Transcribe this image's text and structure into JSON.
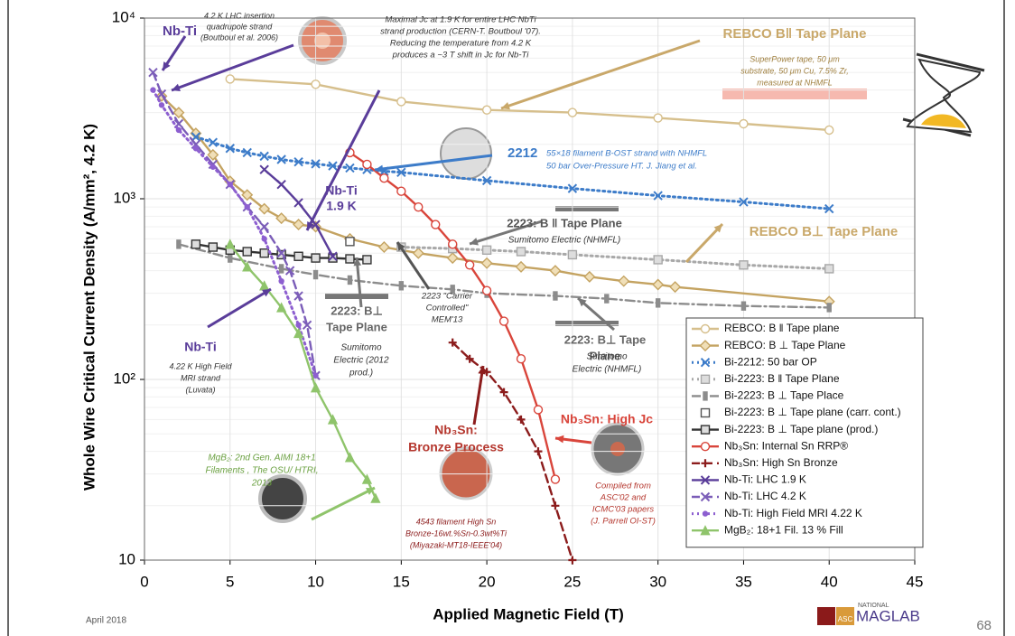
{
  "chart_data": {
    "type": "line",
    "log_y": true,
    "grid": true,
    "legend": "lower right",
    "xlabel": "Applied Magnetic Field (T)",
    "ylabel": "Whole Wire Critical Current Density (A/mm², 4.2 K)",
    "xlim": [
      0,
      45
    ],
    "xticks": [
      0,
      5,
      10,
      15,
      20,
      25,
      30,
      35,
      40,
      45
    ],
    "ylim": [
      10,
      10000
    ],
    "yticks": [
      {
        "value": 10000,
        "label": "10⁴"
      },
      {
        "value": 1000,
        "label": "10³"
      },
      {
        "value": 100,
        "label": "10²"
      },
      10
    ],
    "series": [
      {
        "name": "REBCO: B ‖ Tape plane",
        "color": "#d6bf8c",
        "marker": "circle",
        "line": "solid",
        "x": [
          5,
          10,
          15,
          20,
          25,
          30,
          35,
          40
        ],
        "values": [
          4600,
          4300,
          3450,
          3100,
          3000,
          2800,
          2600,
          2400
        ]
      },
      {
        "name": "REBCO: B ⊥ Tape Plane",
        "color": "#c4a361",
        "marker": "diamond",
        "line": "solid",
        "x": [
          1,
          2,
          3,
          4,
          5,
          6,
          7,
          8,
          9,
          10,
          12,
          14,
          16,
          18,
          20,
          22,
          24,
          26,
          28,
          30,
          31,
          40
        ],
        "values": [
          3700,
          3000,
          2300,
          1750,
          1250,
          1050,
          880,
          780,
          720,
          700,
          600,
          540,
          500,
          470,
          440,
          420,
          400,
          370,
          350,
          335,
          325,
          270
        ]
      },
      {
        "name": "Bi-2212: 50 bar OP",
        "color": "#3d7cc9",
        "marker": "x",
        "line": "dotted",
        "x": [
          3,
          4,
          5,
          6,
          7,
          8,
          9,
          10,
          11,
          12,
          13,
          14,
          15,
          20,
          25,
          30,
          35,
          40
        ],
        "values": [
          2200,
          2050,
          1900,
          1800,
          1720,
          1650,
          1600,
          1560,
          1520,
          1480,
          1450,
          1420,
          1400,
          1260,
          1140,
          1040,
          960,
          880
        ]
      },
      {
        "name": "Bi-2223: B ‖ Tape Plane",
        "color": "#a8a8a8",
        "marker": "square",
        "line": "dotted",
        "x": [
          15,
          18,
          20,
          22,
          25,
          30,
          35,
          40
        ],
        "values": [
          540,
          530,
          520,
          510,
          490,
          460,
          430,
          410
        ]
      },
      {
        "name": "Bi-2223: B ⊥ Tape Place",
        "color": "#8c8c8c",
        "marker": "tick",
        "line": "dashdot",
        "x": [
          2,
          5,
          8,
          10,
          12,
          15,
          18,
          20,
          24,
          27,
          30,
          35,
          40
        ],
        "values": [
          560,
          470,
          410,
          380,
          355,
          330,
          315,
          300,
          290,
          280,
          265,
          255,
          250
        ]
      },
      {
        "name": "Bi-2223: B ⊥ Tape plane (carr. cont.)",
        "color": "#555555",
        "marker": "open-square",
        "line": "none",
        "x": [
          12
        ],
        "values": [
          580
        ]
      },
      {
        "name": "Bi-2223: B ⊥ Tape plane (prod.)",
        "color": "#333333",
        "marker": "square",
        "line": "solid",
        "x": [
          3,
          4,
          5,
          6,
          7,
          8,
          9,
          10,
          11,
          12,
          13
        ],
        "values": [
          560,
          540,
          520,
          510,
          500,
          490,
          480,
          470,
          470,
          465,
          460
        ]
      },
      {
        "name": "Nb₃Sn: Internal Sn RRP®",
        "color": "#d9453b",
        "marker": "circle",
        "line": "solid",
        "x": [
          12,
          13,
          14,
          15,
          16,
          17,
          18,
          19,
          20,
          21,
          22,
          23,
          24
        ],
        "values": [
          1800,
          1550,
          1300,
          1100,
          900,
          720,
          560,
          430,
          310,
          210,
          130,
          68,
          28
        ]
      },
      {
        "name": "Nb₃Sn: High Sn Bronze",
        "color": "#8c1c1c",
        "marker": "plus",
        "line": "dashed",
        "x": [
          18,
          19,
          20,
          21,
          22,
          23,
          24,
          25
        ],
        "values": [
          160,
          130,
          110,
          85,
          60,
          40,
          20,
          10
        ]
      },
      {
        "name": "Nb-Ti: LHC 1.9 K",
        "color": "#5a3d9a",
        "marker": "x",
        "line": "solid",
        "x": [
          7,
          8,
          9,
          10,
          11
        ],
        "values": [
          1450,
          1200,
          950,
          720,
          480
        ]
      },
      {
        "name": "Nb-Ti: LHC 4.2 K",
        "color": "#7b5db8",
        "marker": "x",
        "line": "dashed",
        "x": [
          0.5,
          1,
          2,
          3,
          4,
          5,
          6,
          7,
          8,
          8.5,
          9,
          9.5,
          10
        ],
        "values": [
          5000,
          3800,
          2600,
          2000,
          1550,
          1200,
          900,
          700,
          500,
          400,
          290,
          200,
          105
        ]
      },
      {
        "name": "Nb-Ti: High Field MRI 4.22 K",
        "color": "#8d5fd0",
        "marker": "dot",
        "line": "dotted",
        "x": [
          0.5,
          1,
          2,
          3,
          4,
          5,
          6,
          7,
          8,
          9,
          10
        ],
        "values": [
          4000,
          3300,
          2400,
          1900,
          1500,
          1200,
          900,
          600,
          350,
          200,
          105
        ]
      },
      {
        "name": "MgB₂: 18+1 Fil. 13 % Fill",
        "color": "#8fc46b",
        "marker": "triangle",
        "line": "solid",
        "x": [
          5,
          6,
          7,
          8,
          9,
          10,
          11,
          12,
          13,
          13.5
        ],
        "values": [
          560,
          420,
          330,
          250,
          180,
          90,
          60,
          37,
          28,
          22
        ]
      }
    ],
    "annotations": [
      [
        "Nb-Ti"
      ],
      [
        "4.2 K LHC insertion",
        "quadrupole strand",
        "(Boutboul et al. 2006)"
      ],
      [
        "Maximal Jc at 1.9 K for entire LHC NbTi",
        "strand production (CERN-T. Boutboul '07).",
        "Reducing the temperature from 4.2 K",
        "produces a ~3 T shift in Jc for Nb-Ti"
      ],
      [
        "REBCO B‖ Tape Plane"
      ],
      [
        "SuperPower tape, 50 μm",
        "substrate, 50 μm Cu, 7.5% Zr,",
        "measured at NHMFL"
      ],
      [
        "2212"
      ],
      [
        "55×18 filament B-OST strand with  NHMFL",
        "50 bar Over-Pressure HT. J. Jiang et al."
      ],
      [
        "Nb-Ti",
        "1.9 K"
      ],
      [
        "2223: B ‖ Tape Plane"
      ],
      [
        "Sumitomo Electric (NHMFL)"
      ],
      [
        "REBCO B⊥ Tape Plane"
      ],
      [
        "2223: B⊥",
        "Tape Plane"
      ],
      [
        "Sumitomo",
        "Electric (2012",
        "prod.)"
      ],
      [
        "2223 \"Carrier",
        "Controlled\"",
        "MEM'13"
      ],
      [
        "2223: B⊥ Tape",
        "Plane"
      ],
      [
        "Sumitomo",
        "Electric (NHMFL)"
      ],
      [
        "Nb-Ti"
      ],
      [
        "4.22 K High Field",
        "MRI strand",
        "(Luvata)"
      ],
      [
        "Nb₃Sn:",
        "Bronze Process"
      ],
      [
        "Nb₃Sn: High Jc"
      ],
      [
        "MgB₂: 2nd Gen. AIMI 18+1",
        "Filaments , The OSU/ HTRI,",
        "2013"
      ],
      [
        "4543 filament High Sn",
        "Bronze-16wt.%Sn-0.3wt%Ti",
        "(Miyazaki-MT18-IEEE'04)"
      ],
      [
        "Compiled from",
        "ASC'02 and",
        "ICMC'03 papers",
        "(J. Parrell OI-ST)"
      ]
    ]
  },
  "footer": {
    "date": "April 2018",
    "page": "68",
    "logo_small": "NATIONAL",
    "logo_big": "MAGLAB",
    "logo_mark": "ASC"
  }
}
